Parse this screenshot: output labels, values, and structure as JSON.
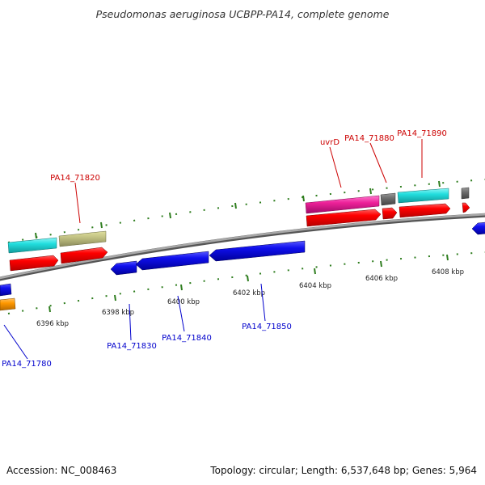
{
  "title": "Pseudomonas aeruginosa UCBPP-PA14, complete genome",
  "footer": {
    "accession": "Accession: NC_008463",
    "summary": "Topology: circular; Length: 6,537,648 bp; Genes: 5,964"
  },
  "colors": {
    "forward_label": "#cc0000",
    "reverse_label": "#0000cc",
    "backbone": "#8a8a8a",
    "tick": "#2e7d1e"
  },
  "ticks": [
    "6396 kbp",
    "6398 kbp",
    "6400 kbp",
    "6402 kbp",
    "6404 kbp",
    "6406 kbp",
    "6408 kbp"
  ],
  "forward_labels": [
    "PA14_71820",
    "uvrD",
    "PA14_71880",
    "PA14_71890"
  ],
  "reverse_labels": [
    "PA14_71780",
    "PA14_71830",
    "PA14_71840",
    "PA14_71850"
  ]
}
